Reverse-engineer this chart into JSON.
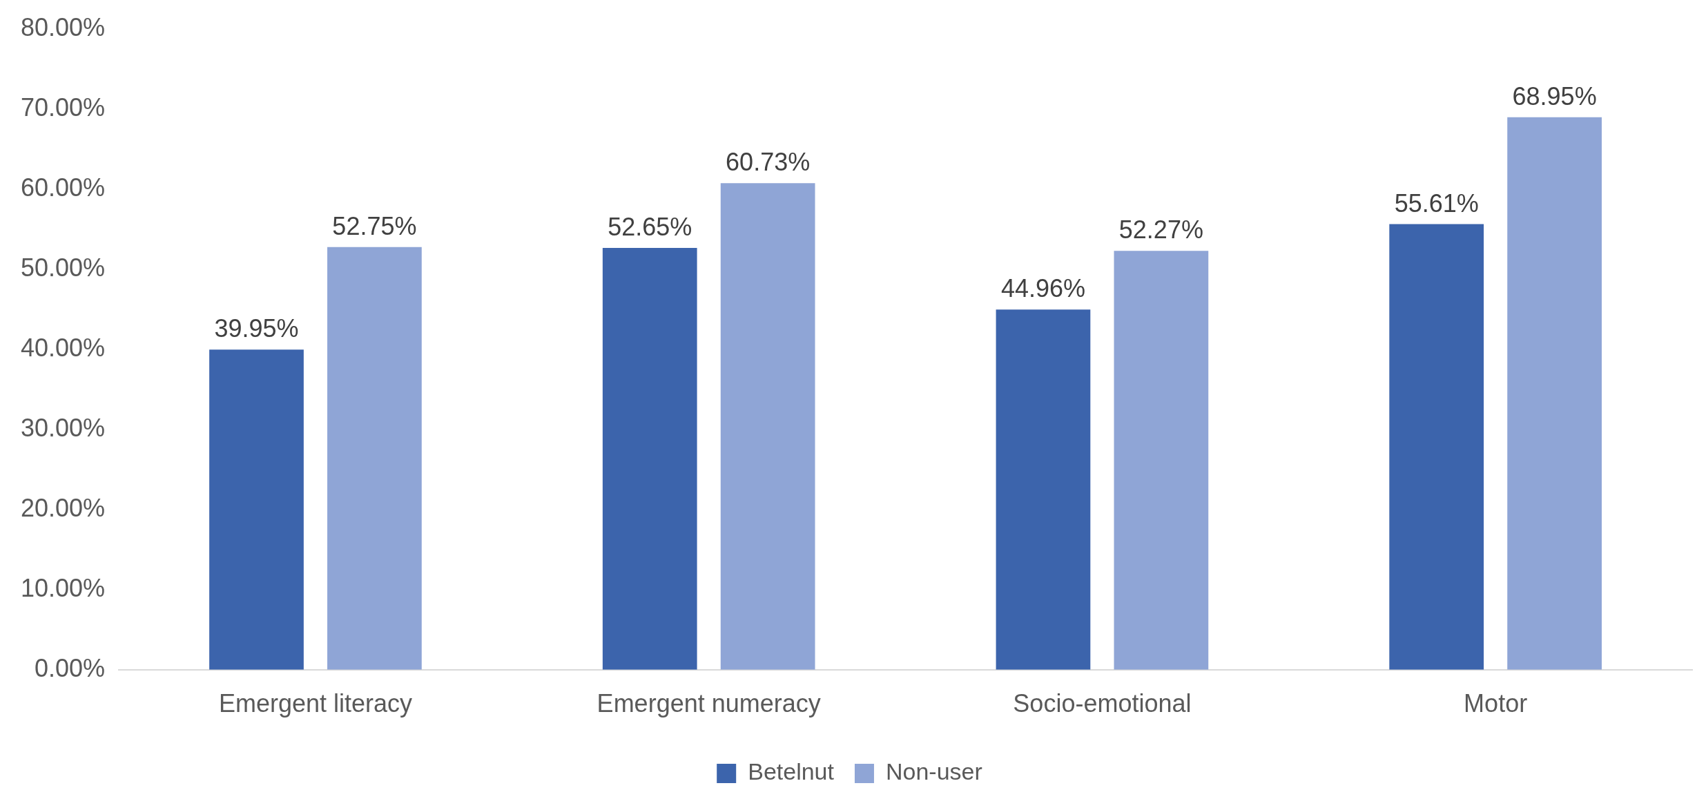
{
  "chart_data": {
    "type": "bar",
    "categories": [
      "Emergent literacy",
      "Emergent numeracy",
      "Socio-emotional",
      "Motor"
    ],
    "series": [
      {
        "name": "Betelnut",
        "color": "#3c64ac",
        "values": [
          39.95,
          52.65,
          44.96,
          55.61
        ],
        "value_labels": [
          "39.95%",
          "52.65%",
          "44.96%",
          "55.61%"
        ]
      },
      {
        "name": "Non-user",
        "color": "#8fa5d6",
        "values": [
          52.75,
          60.73,
          52.27,
          68.95
        ],
        "value_labels": [
          "52.75%",
          "60.73%",
          "52.27%",
          "68.95%"
        ]
      }
    ],
    "ylim": [
      0,
      80
    ],
    "yticks": [
      {
        "value": 0,
        "label": "0.00%"
      },
      {
        "value": 10,
        "label": "10.00%"
      },
      {
        "value": 20,
        "label": "20.00%"
      },
      {
        "value": 30,
        "label": "30.00%"
      },
      {
        "value": 40,
        "label": "40.00%"
      },
      {
        "value": 50,
        "label": "50.00%"
      },
      {
        "value": 60,
        "label": "60.00%"
      },
      {
        "value": 70,
        "label": "70.00%"
      },
      {
        "value": 80,
        "label": "80.00%"
      }
    ],
    "grid": false,
    "legend": "bottom"
  }
}
